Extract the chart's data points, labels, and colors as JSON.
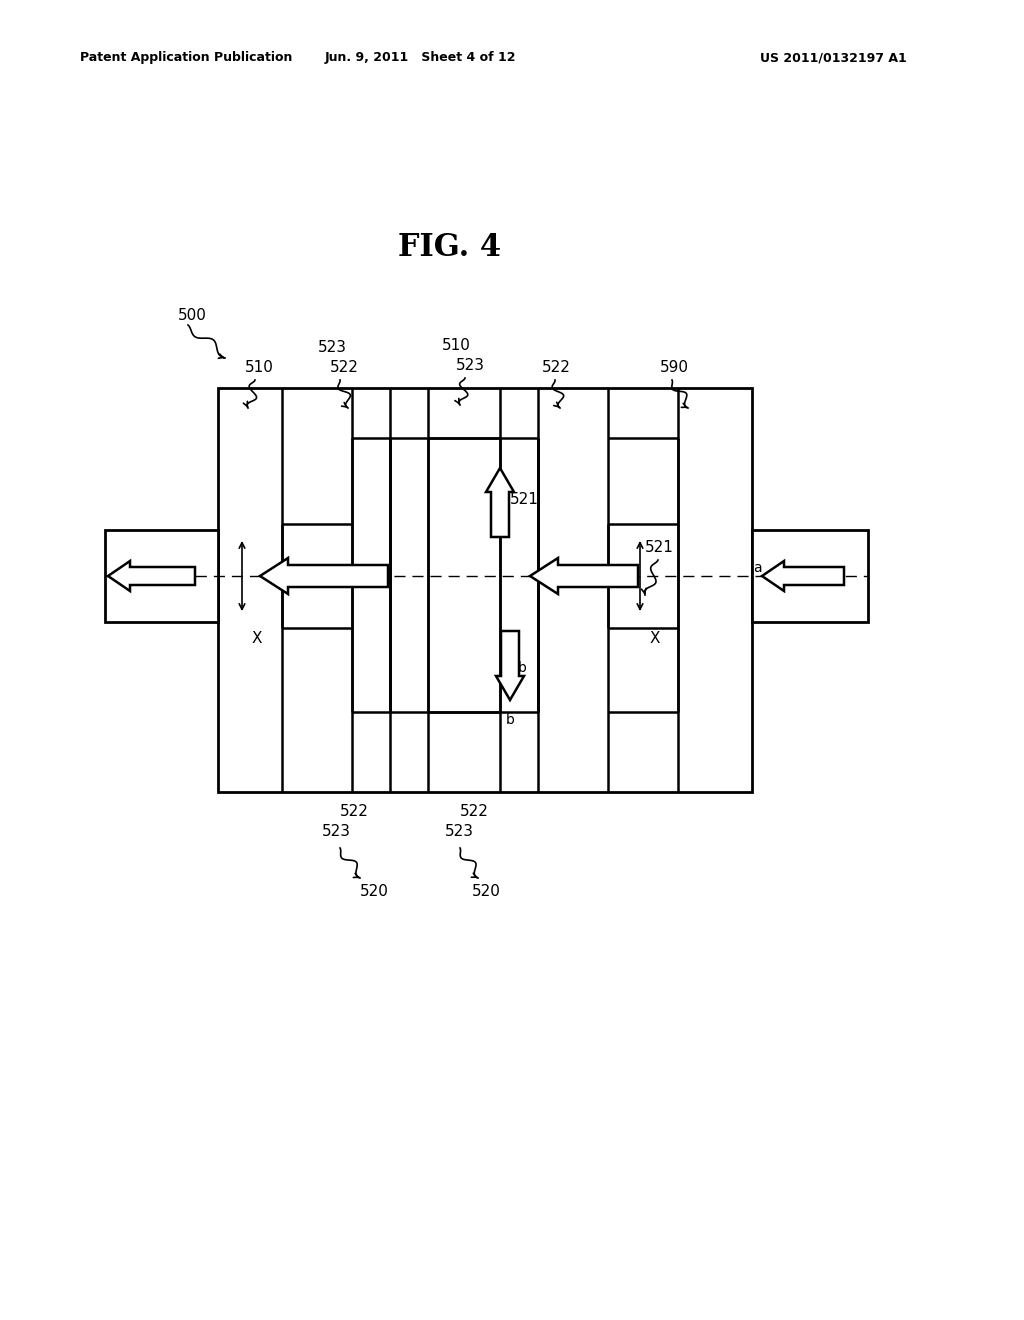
{
  "title": "FIG. 4",
  "header_left": "Patent Application Publication",
  "header_mid": "Jun. 9, 2011   Sheet 4 of 12",
  "header_right": "US 2011/0132197 A1",
  "bg_color": "#ffffff",
  "line_color": "#000000",
  "lw_outer": 2.0,
  "lw_inner": 1.8
}
